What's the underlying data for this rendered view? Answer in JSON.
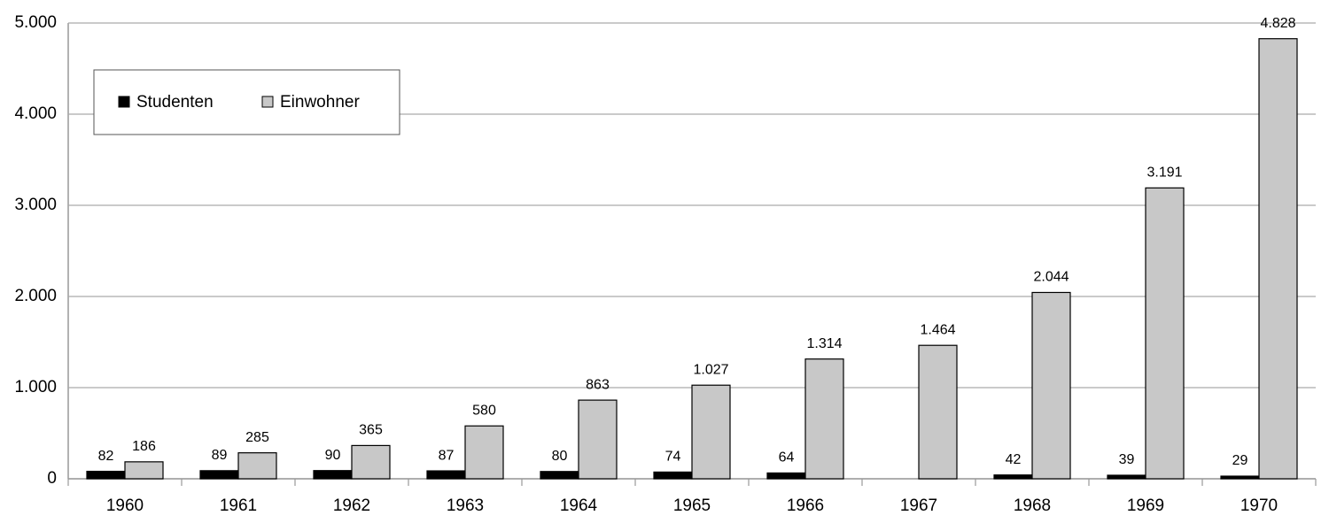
{
  "chart_data": {
    "type": "bar",
    "categories": [
      "1960",
      "1961",
      "1962",
      "1963",
      "1964",
      "1965",
      "1966",
      "1967",
      "1968",
      "1969",
      "1970"
    ],
    "series": [
      {
        "name": "Studenten",
        "color": "#000000",
        "values": [
          82,
          89,
          90,
          87,
          80,
          74,
          64,
          null,
          42,
          39,
          29
        ]
      },
      {
        "name": "Einwohner",
        "color": "#c8c8c8",
        "values": [
          186,
          285,
          365,
          580,
          863,
          1027,
          1314,
          1464,
          2044,
          3191,
          4828
        ],
        "value_labels": [
          "186",
          "285",
          "365",
          "580",
          "863",
          "1.027",
          "1.314",
          "1.464",
          "2.044",
          "3.191",
          "4.828"
        ]
      }
    ],
    "ylim": [
      0,
      5000
    ],
    "yticks": [
      0,
      {
        "value": 1000,
        "label": "1.000"
      },
      {
        "value": 2000,
        "label": "2.000"
      },
      {
        "value": 3000,
        "label": "3.000"
      },
      {
        "value": 4000,
        "label": "4.000"
      },
      {
        "value": 5000,
        "label": "5.000"
      }
    ],
    "grid": true,
    "legend": "top-left"
  }
}
